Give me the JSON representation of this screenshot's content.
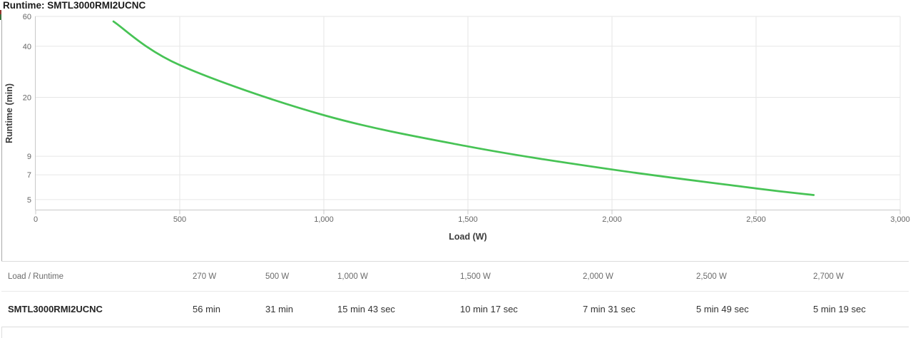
{
  "page": {
    "title": "Runtime: SMTL3000RMI2UCNC"
  },
  "chart_data": {
    "type": "line",
    "title": "Runtime: SMTL3000RMI2UCNC",
    "xlabel": "Load (W)",
    "ylabel": "Runtime (min)",
    "x_scale": "linear",
    "y_scale": "log",
    "xlim": [
      0,
      3000
    ],
    "x_ticks": [
      0,
      500,
      1000,
      1500,
      2000,
      2500,
      3000
    ],
    "x_tick_labels": [
      "0",
      "500",
      "1,000",
      "1,500",
      "2,000",
      "2,500",
      "3,000"
    ],
    "y_ticks": [
      60,
      40,
      20,
      9,
      7,
      5
    ],
    "y_tick_labels": [
      "60",
      "40",
      "20",
      "9",
      "7",
      "5"
    ],
    "grid": true,
    "legend": false,
    "series": [
      {
        "name": "SMTL3000RMI2UCNC",
        "color": "#47c355",
        "x": [
          270,
          500,
          1000,
          1500,
          2000,
          2500,
          2700
        ],
        "y_minutes": [
          56,
          31,
          15.7167,
          10.2833,
          7.5167,
          5.8167,
          5.3167
        ],
        "y_labels": [
          "56 min",
          "31 min",
          "15 min 43 sec",
          "10 min 17 sec",
          "7 min 31 sec",
          "5 min 49 sec",
          "5 min 19 sec"
        ]
      }
    ]
  },
  "table": {
    "headers": [
      "Load / Runtime",
      "270 W",
      "500 W",
      "1,000 W",
      "1,500 W",
      "2,000 W",
      "2,500 W",
      "2,700 W"
    ],
    "rows": [
      {
        "name": "SMTL3000RMI2UCNC",
        "values": [
          "56 min",
          "31 min",
          "15 min 43 sec",
          "10 min 17 sec",
          "7 min 31 sec",
          "5 min 49 sec",
          "5 min 19 sec"
        ]
      }
    ]
  },
  "colors": {
    "series_green": "#47c355",
    "gridline": "#e6e6e6",
    "axis_line": "#c8c8c8",
    "tick_text": "#666666"
  }
}
